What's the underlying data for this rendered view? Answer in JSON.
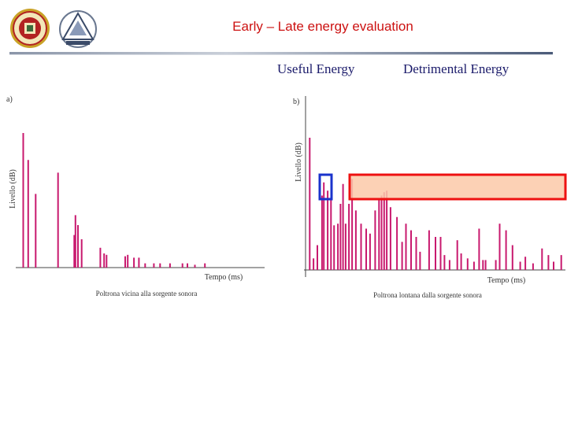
{
  "header": {
    "title": "Early – Late energy evaluation",
    "useful_label": "Useful Energy",
    "detrimental_label": "Detrimental Energy"
  },
  "colors": {
    "title": "#cc1111",
    "bar": "#c8196e",
    "highlight_box": "#ee1111",
    "highlight_fill": "#fbc9a8",
    "direct_box": "#1a33cc"
  },
  "chart_data": [
    {
      "type": "bar",
      "panel_label": "a)",
      "ylabel": "Livello (dB)",
      "xlabel": "Tempo (ms)",
      "caption": "Poltrona vicina alla sorgente sonora",
      "xlim": [
        0,
        100
      ],
      "ylim": [
        0,
        100
      ],
      "x": [
        3,
        5,
        8,
        17,
        23.5,
        24,
        25,
        26.5,
        34,
        35.5,
        36.5,
        44,
        45,
        47.5,
        49.5,
        52,
        55.5,
        58,
        62,
        67,
        69,
        72,
        76
      ],
      "values": [
        95,
        76,
        52,
        67,
        23,
        37,
        30,
        20,
        14,
        10,
        9,
        8,
        9,
        7,
        7,
        3,
        3,
        3,
        3,
        3,
        3,
        2,
        3
      ]
    },
    {
      "type": "bar",
      "panel_label": "b)",
      "ylabel": "Livello (dB)",
      "xlabel": "Tempo (ms)",
      "caption": "Poltrona lontana dalla sorgente sonora",
      "xlim": [
        0,
        100
      ],
      "ylim": [
        0,
        100
      ],
      "x": [
        1,
        2.5,
        4,
        5.8,
        6.5,
        8,
        9.3,
        10.5,
        12,
        13,
        14,
        15,
        16.3,
        17.5,
        19,
        21,
        23,
        24.5,
        26.5,
        28,
        29,
        30,
        31,
        32.5,
        35,
        37,
        38.5,
        40.5,
        42.5,
        44,
        47.5,
        50,
        52,
        53.5,
        55.5,
        58.5,
        60,
        62.5,
        65,
        67,
        68.5,
        69.5,
        73.5,
        75,
        77.5,
        80,
        83,
        85,
        88,
        91.5,
        94,
        96,
        99
      ],
      "values": [
        80,
        7,
        15,
        45,
        53,
        48,
        43,
        27,
        28,
        40,
        52,
        28,
        40,
        55,
        36,
        28,
        25,
        22,
        36,
        43,
        45,
        47,
        48,
        38,
        32,
        17,
        28,
        24,
        20,
        11,
        24,
        20,
        20,
        9,
        6,
        18,
        10,
        7,
        5,
        25,
        6,
        6,
        6,
        28,
        24,
        15,
        5,
        8,
        4,
        13,
        9,
        5,
        9
      ]
    }
  ]
}
